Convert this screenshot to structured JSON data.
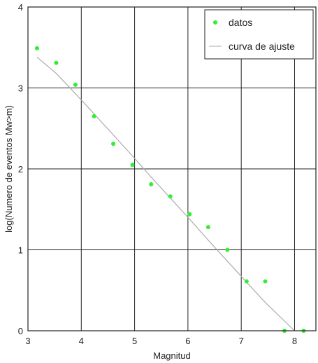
{
  "chart_data": {
    "type": "scatter",
    "title": "",
    "xlabel": "Magnitud",
    "ylabel": "log(Numero de eventos Mw>m)",
    "xlim": [
      3,
      8.4
    ],
    "ylim": [
      0,
      4
    ],
    "xticks": [
      3,
      4,
      5,
      6,
      7,
      8
    ],
    "yticks": [
      0,
      1,
      2,
      3,
      4
    ],
    "grid": true,
    "legend_position": "top-right",
    "series": [
      {
        "name": "datos",
        "kind": "scatter",
        "color": "#33ee33",
        "x": [
          3.17,
          3.53,
          3.89,
          4.24,
          4.6,
          4.96,
          5.31,
          5.67,
          6.03,
          6.38,
          6.74,
          7.1,
          7.45,
          7.81,
          8.17
        ],
        "y": [
          3.49,
          3.31,
          3.04,
          2.65,
          2.31,
          2.05,
          1.81,
          1.66,
          1.44,
          1.28,
          1.0,
          0.61,
          0.61,
          0.0,
          0.0
        ]
      },
      {
        "name": "curva de ajuste",
        "kind": "line",
        "color": "#aaaaaa",
        "x": [
          3.17,
          3.53,
          3.89,
          4.24,
          4.6,
          4.96,
          5.31,
          5.67,
          6.03,
          6.38,
          6.74,
          7.1,
          7.45,
          8.0
        ],
        "y": [
          3.38,
          3.18,
          2.93,
          2.68,
          2.42,
          2.16,
          1.9,
          1.64,
          1.38,
          1.12,
          0.86,
          0.6,
          0.35,
          0.0
        ]
      }
    ]
  }
}
